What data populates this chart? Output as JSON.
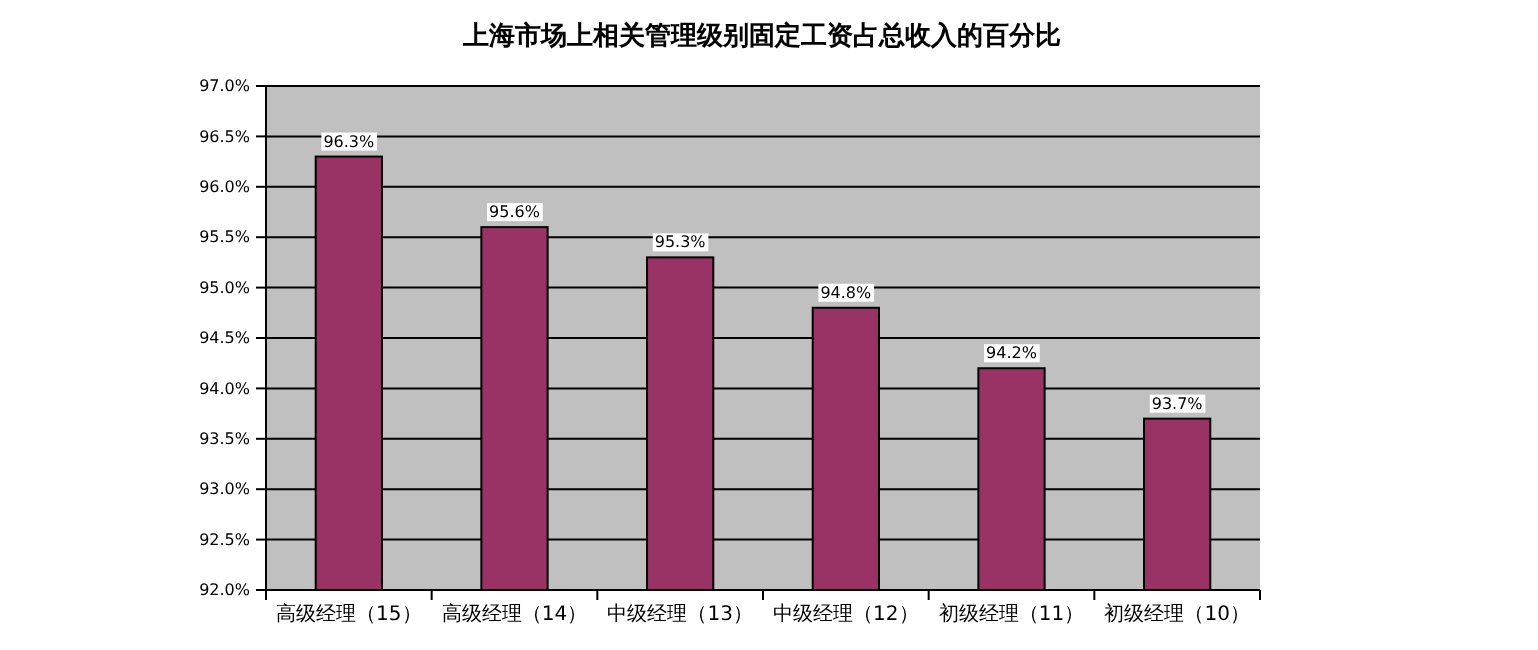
{
  "chart_data": {
    "type": "bar",
    "title": "上海市场上相关管理级别固定工资占总收入的百分比",
    "categories": [
      "高级经理（15）",
      "高级经理（14）",
      "中级经理（13）",
      "中级经理（12）",
      "初级经理（11）",
      "初级经理（10）"
    ],
    "values": [
      96.3,
      95.6,
      95.3,
      94.8,
      94.2,
      93.7
    ],
    "value_labels": [
      "96.3%",
      "95.6%",
      "95.3%",
      "94.8%",
      "94.2%",
      "93.7%"
    ],
    "color": "#993366",
    "ylim": [
      92,
      97
    ],
    "yticks": [
      {
        "value": 92,
        "label": "92.0%"
      },
      {
        "value": 92.5,
        "label": "92.5%"
      },
      {
        "value": 93,
        "label": "93.0%"
      },
      {
        "value": 93.5,
        "label": "93.5%"
      },
      {
        "value": 94,
        "label": "94.0%"
      },
      {
        "value": 94.5,
        "label": "94.5%"
      },
      {
        "value": 95,
        "label": "95.0%"
      },
      {
        "value": 95.5,
        "label": "95.5%"
      },
      {
        "value": 96,
        "label": "96.0%"
      },
      {
        "value": 96.5,
        "label": "96.5%"
      },
      {
        "value": 97,
        "label": "97.0%"
      }
    ],
    "grid": "y"
  }
}
